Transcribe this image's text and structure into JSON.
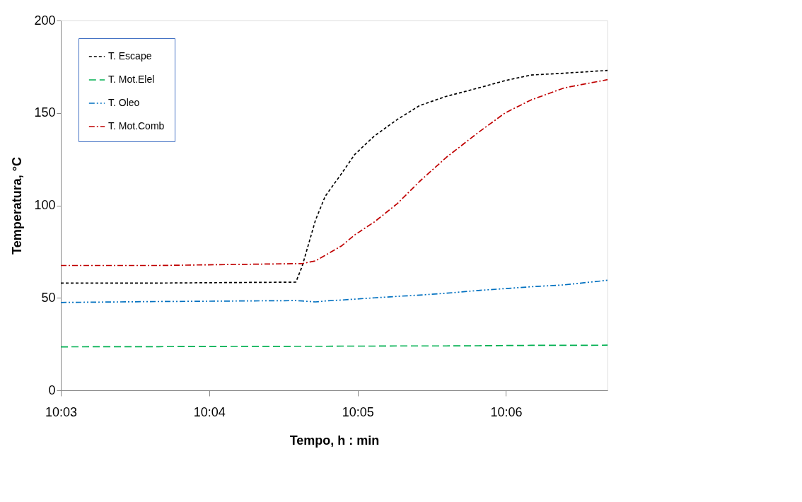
{
  "chart_data": {
    "type": "line",
    "xlabel": "Tempo, h : min",
    "ylabel": "Temperatura, °C",
    "x": [
      10.05,
      10.061,
      10.0764,
      10.0771,
      10.0786,
      10.0797,
      10.0815,
      10.083,
      10.0852,
      10.0878,
      10.0903,
      10.0933,
      10.0969,
      10.0999,
      10.1028,
      10.1065,
      10.1114
    ],
    "series": [
      {
        "name": "T. Escape",
        "color": "#000000",
        "line_style": "dashed",
        "values": [
          58,
          58,
          58.5,
          67,
          92,
          105,
          117,
          127.5,
          137.5,
          146.5,
          154,
          159,
          163.5,
          167.5,
          170.5,
          171.5,
          173
        ]
      },
      {
        "name": "T. Mot.Elel",
        "color": "#00b050",
        "line_style": "dashed",
        "values": [
          23.5,
          23.6,
          23.8,
          23.8,
          23.8,
          23.8,
          23.9,
          23.9,
          23.9,
          24,
          24,
          24,
          24.1,
          24.2,
          24.3,
          24.3,
          24.4
        ]
      },
      {
        "name": "T. Oleo",
        "color": "#0070c0",
        "line_style": "dashed",
        "values": [
          47.5,
          48,
          48.5,
          48.3,
          47.8,
          48.3,
          48.8,
          49.3,
          50,
          50.8,
          51.5,
          52.5,
          54,
          55,
          56,
          57,
          59.5
        ]
      },
      {
        "name": "T. Mot.Comb",
        "color": "#c00000",
        "line_style": "dashed",
        "values": [
          67.5,
          67.5,
          68.5,
          68.5,
          70,
          73,
          78,
          84,
          91,
          101,
          113,
          126,
          139.5,
          150,
          157,
          163.5,
          168
        ]
      }
    ],
    "xlim": [
      10.05,
      10.1114
    ],
    "xticks": [
      {
        "value": 10.05,
        "label": "10:03"
      },
      {
        "value": 10.066667,
        "label": "10:04"
      },
      {
        "value": 10.083333,
        "label": "10:05"
      },
      {
        "value": 10.1,
        "label": "10:06"
      }
    ],
    "ylim": [
      0,
      200
    ],
    "yticks": [
      0,
      50,
      100,
      150,
      200
    ],
    "grid": false,
    "legend": "top left",
    "marker": "none"
  }
}
